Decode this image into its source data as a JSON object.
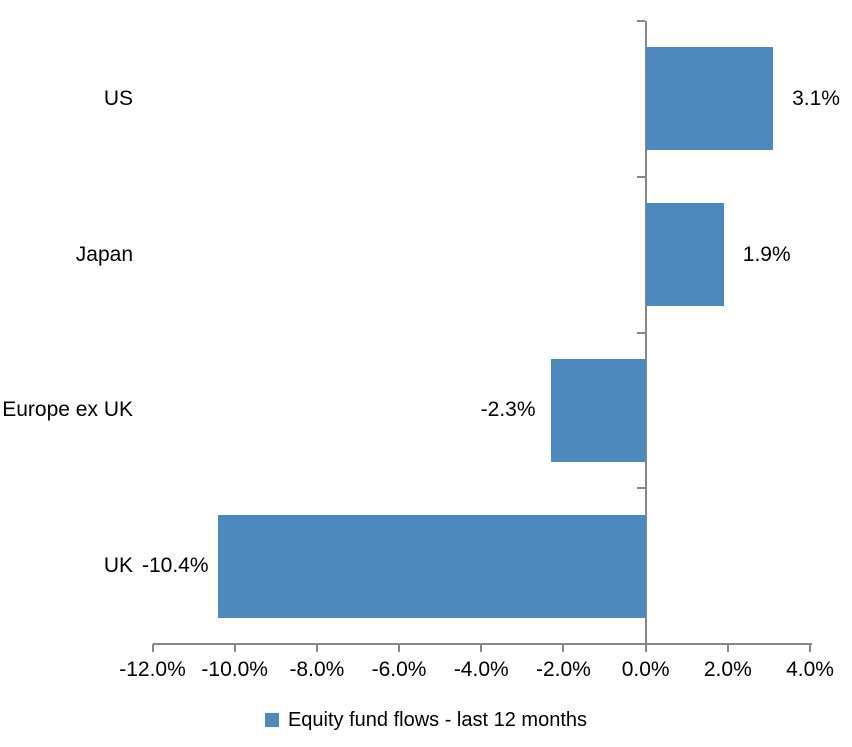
{
  "chart_data": {
    "type": "bar",
    "orientation": "horizontal",
    "title": "",
    "xlabel": "",
    "ylabel": "",
    "categories": [
      "US",
      "Japan",
      "Europe ex UK",
      "UK"
    ],
    "values": [
      3.1,
      1.9,
      -2.3,
      -10.4
    ],
    "value_labels": [
      "3.1%",
      "1.9%",
      "-2.3%",
      "-10.4%"
    ],
    "series_name": "Equity fund flows - last 12 months",
    "xlim": [
      -12,
      4
    ],
    "x_tick_step": 2,
    "x_tick_labels": [
      "-12.0%",
      "-10.0%",
      "-8.0%",
      "-6.0%",
      "-4.0%",
      "-2.0%",
      "0.0%",
      "2.0%",
      "4.0%"
    ],
    "grid": false,
    "legend_position": "bottom",
    "colors": {
      "bar": "#4e89be",
      "axis": "#878787",
      "text": "#000000",
      "background": "#ffffff"
    }
  }
}
